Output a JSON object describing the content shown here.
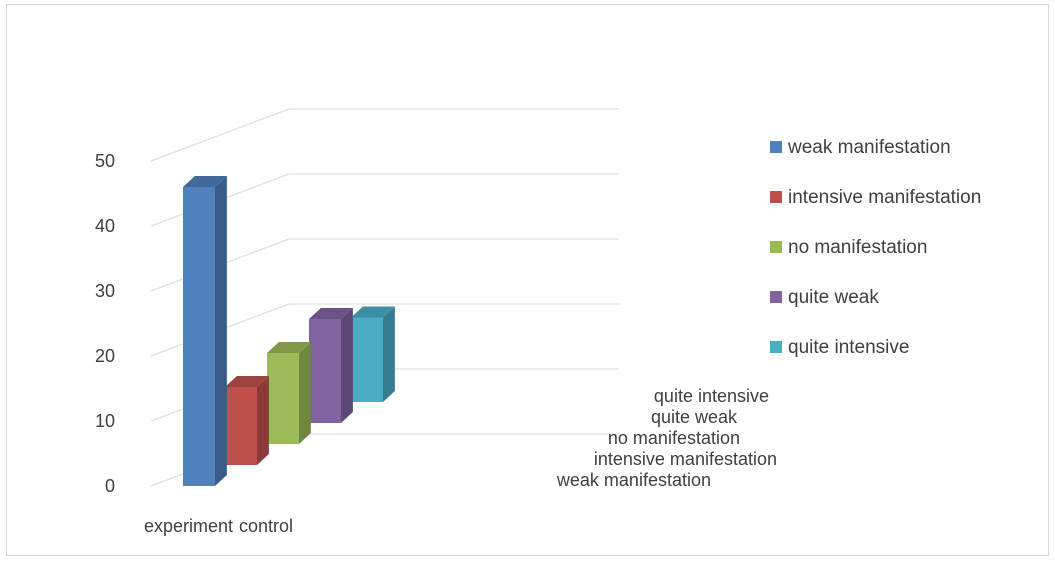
{
  "chart_data": {
    "type": "bar",
    "subtype": "3d-column",
    "title": "",
    "xlabel": "",
    "ylabel": "",
    "ylim": [
      0,
      50
    ],
    "yticks": [
      0,
      10,
      20,
      30,
      40,
      50
    ],
    "categories": [
      "experiment",
      "control"
    ],
    "series": [
      {
        "name": "weak manifestation",
        "color": "#4f81bd",
        "values": [
          46,
          null
        ]
      },
      {
        "name": "intensive manifestation",
        "color": "#c0504d",
        "values": [
          12,
          null
        ]
      },
      {
        "name": "no manifestation",
        "color": "#9bbb59",
        "values": [
          14,
          null
        ]
      },
      {
        "name": "quite weak",
        "color": "#8064a2",
        "values": [
          16,
          null
        ]
      },
      {
        "name": "quite intensive",
        "color": "#4bacc6",
        "values": [
          13,
          null
        ]
      }
    ],
    "depth_labels": [
      "quite intensive",
      "quite weak",
      "no manifestation",
      "intensive manifestation",
      "weak manifestation"
    ],
    "grid": true,
    "legend_position": "right"
  }
}
